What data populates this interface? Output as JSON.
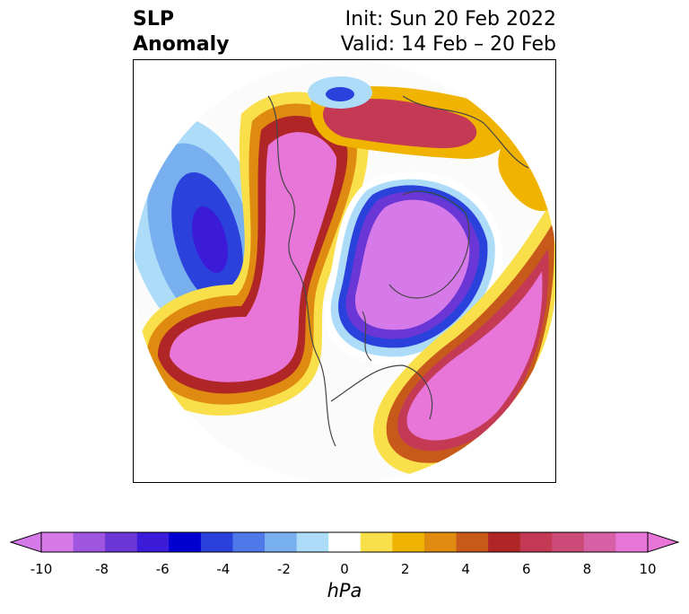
{
  "header": {
    "title_line1": "SLP",
    "title_line2": "Anomaly",
    "init_text": "Init: Sun 20 Feb 2022",
    "valid_text": "Valid: 14 Feb – 20 Feb"
  },
  "colorbar": {
    "units": "hPa",
    "tick_labels": [
      "-10",
      "-8",
      "-6",
      "-4",
      "-2",
      "0",
      "2",
      "4",
      "6",
      "8",
      "10"
    ],
    "levels": [
      -10,
      -9,
      -8,
      -7,
      -6,
      -5,
      -4,
      -3,
      -2,
      -1,
      1,
      2,
      3,
      4,
      5,
      6,
      7,
      8,
      9,
      10
    ],
    "colors": [
      "#d77ae9",
      "#9f55e0",
      "#6a37d6",
      "#3b1bd7",
      "#0000d0",
      "#2a42db",
      "#4f78e8",
      "#78b0ef",
      "#addcf9",
      "#ffffff",
      "#f9e04a",
      "#f0b400",
      "#df8a10",
      "#c75a1b",
      "#b02626",
      "#c43a55",
      "#cc4a78",
      "#d65fa5",
      "#e876d9"
    ],
    "under_color": "#d77ae9",
    "over_color": "#e876d9"
  }
}
